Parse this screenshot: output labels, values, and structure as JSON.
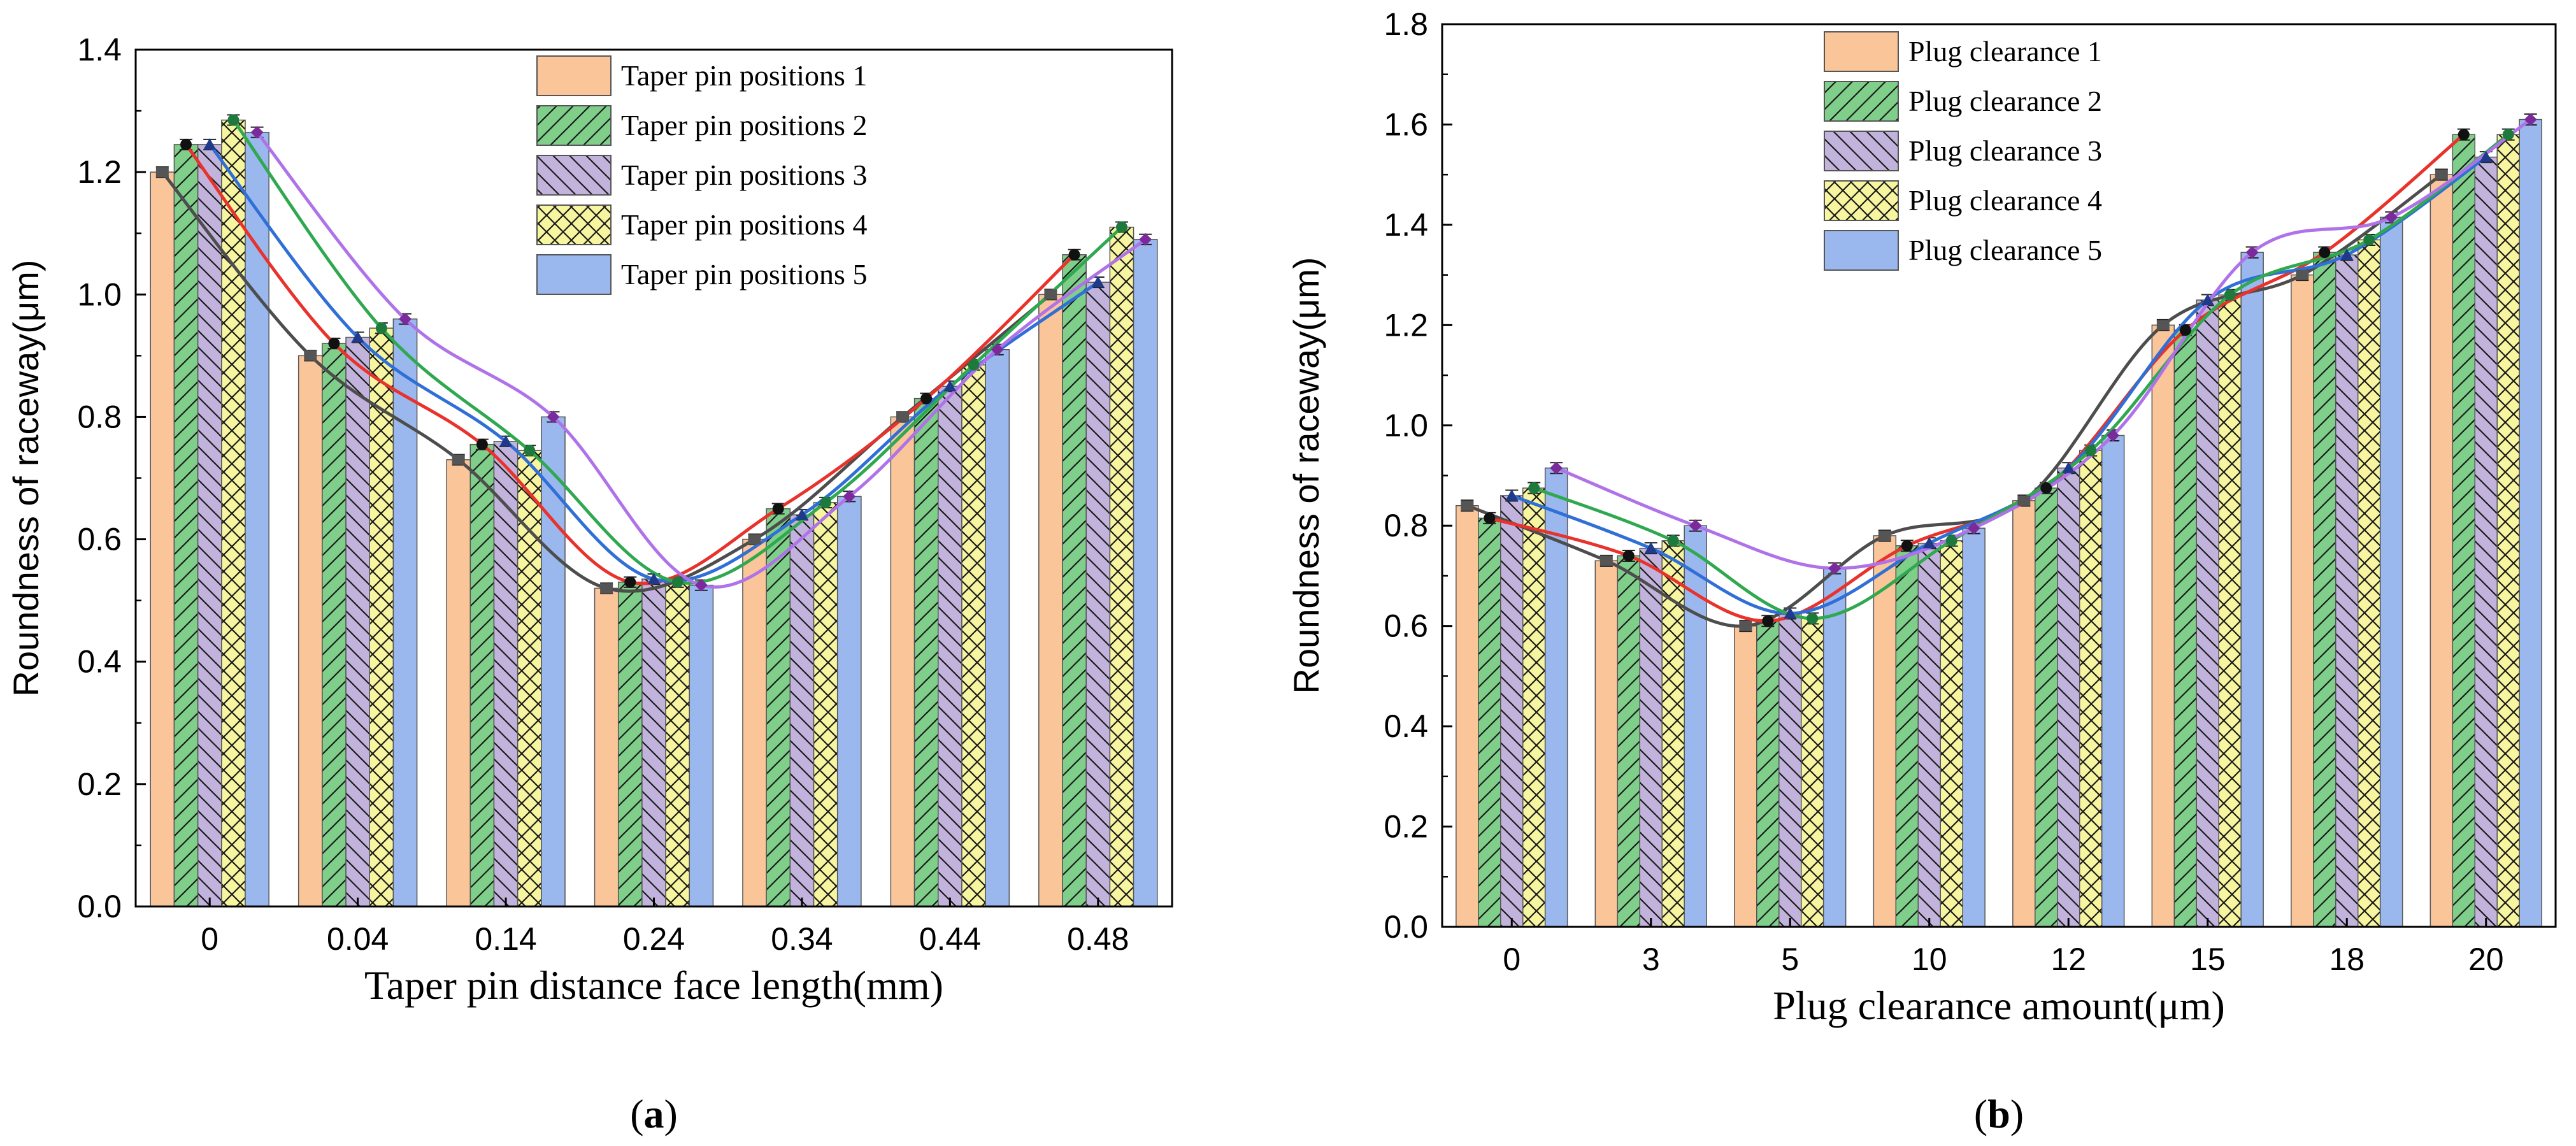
{
  "chart_data": [
    {
      "type": "bar",
      "panel_label": "a",
      "xlabel": "Taper pin distance face length(mm)",
      "ylabel": "Roundness of raceway(μm)",
      "ylim": [
        0,
        1.4
      ],
      "yticks": [
        0.0,
        0.2,
        0.4,
        0.6,
        0.8,
        1.0,
        1.2,
        1.4
      ],
      "ytick_labels": [
        "0.0",
        "0.2",
        "0.4",
        "0.6",
        "0.8",
        "1.0",
        "1.2",
        "1.4"
      ],
      "categories": [
        "0",
        "0.04",
        "0.14",
        "0.24",
        "0.34",
        "0.44",
        "0.48"
      ],
      "legend_position": "top-right",
      "grid": false,
      "error_bars": true,
      "fitted_curves": true,
      "series": [
        {
          "name": "Taper pin positions 1",
          "values": [
            1.2,
            0.9,
            0.73,
            0.52,
            0.6,
            0.8,
            1.0
          ],
          "fill": "#fbc59a",
          "hatch": "none",
          "curve": "#4d4d4d"
        },
        {
          "name": "Taper pin positions 2",
          "values": [
            1.245,
            0.92,
            0.755,
            0.53,
            0.65,
            0.83,
            1.065
          ],
          "fill": "#7fce8a",
          "hatch": "diag-right",
          "curve": "#e8322b"
        },
        {
          "name": "Taper pin positions 3",
          "values": [
            1.245,
            0.93,
            0.76,
            0.535,
            0.64,
            0.85,
            1.02
          ],
          "fill": "#c2b3dc",
          "hatch": "diag-left",
          "curve": "#2f6fd6"
        },
        {
          "name": "Taper pin positions 4",
          "values": [
            1.285,
            0.945,
            0.745,
            0.53,
            0.66,
            0.885,
            1.11
          ],
          "fill": "#f7f5a0",
          "hatch": "cross",
          "curve": "#2fa84f"
        },
        {
          "name": "Taper pin positions 5",
          "values": [
            1.265,
            0.96,
            0.8,
            0.525,
            0.67,
            0.91,
            1.09
          ],
          "fill": "#9ab8ee",
          "hatch": "none",
          "curve": "#b072e8"
        }
      ]
    },
    {
      "type": "bar",
      "panel_label": "b",
      "xlabel": "Plug clearance amount(μm)",
      "ylabel": "Roundness of raceway(μm)",
      "ylim": [
        0,
        1.8
      ],
      "yticks": [
        0.0,
        0.2,
        0.4,
        0.6,
        0.8,
        1.0,
        1.2,
        1.4,
        1.6,
        1.8
      ],
      "ytick_labels": [
        "0.0",
        "0.2",
        "0.4",
        "0.6",
        "0.8",
        "1.0",
        "1.2",
        "1.4",
        "1.6",
        "1.8"
      ],
      "categories": [
        "0",
        "3",
        "5",
        "10",
        "12",
        "15",
        "18",
        "20"
      ],
      "legend_position": "top-left",
      "grid": false,
      "error_bars": true,
      "fitted_curves": true,
      "series": [
        {
          "name": "Plug clearance  1",
          "values": [
            0.84,
            0.73,
            0.6,
            0.78,
            0.85,
            1.2,
            1.3,
            1.5
          ],
          "fill": "#fbc59a",
          "hatch": "none",
          "curve": "#4d4d4d"
        },
        {
          "name": "Plug clearance  2",
          "values": [
            0.815,
            0.74,
            0.61,
            0.76,
            0.875,
            1.19,
            1.345,
            1.58
          ],
          "fill": "#7fce8a",
          "hatch": "diag-right",
          "curve": "#e8322b"
        },
        {
          "name": "Plug clearance  3",
          "values": [
            0.86,
            0.755,
            0.625,
            0.765,
            0.915,
            1.25,
            1.34,
            1.535
          ],
          "fill": "#c2b3dc",
          "hatch": "diag-left",
          "curve": "#2f6fd6"
        },
        {
          "name": "Plug clearance  4",
          "values": [
            0.875,
            0.77,
            0.615,
            0.77,
            0.95,
            1.26,
            1.37,
            1.58
          ],
          "fill": "#f7f5a0",
          "hatch": "cross",
          "curve": "#2fa84f"
        },
        {
          "name": "Plug clearance  5",
          "values": [
            0.915,
            0.8,
            0.715,
            0.795,
            0.98,
            1.345,
            1.415,
            1.61
          ],
          "fill": "#9ab8ee",
          "hatch": "none",
          "curve": "#b072e8"
        }
      ]
    }
  ]
}
